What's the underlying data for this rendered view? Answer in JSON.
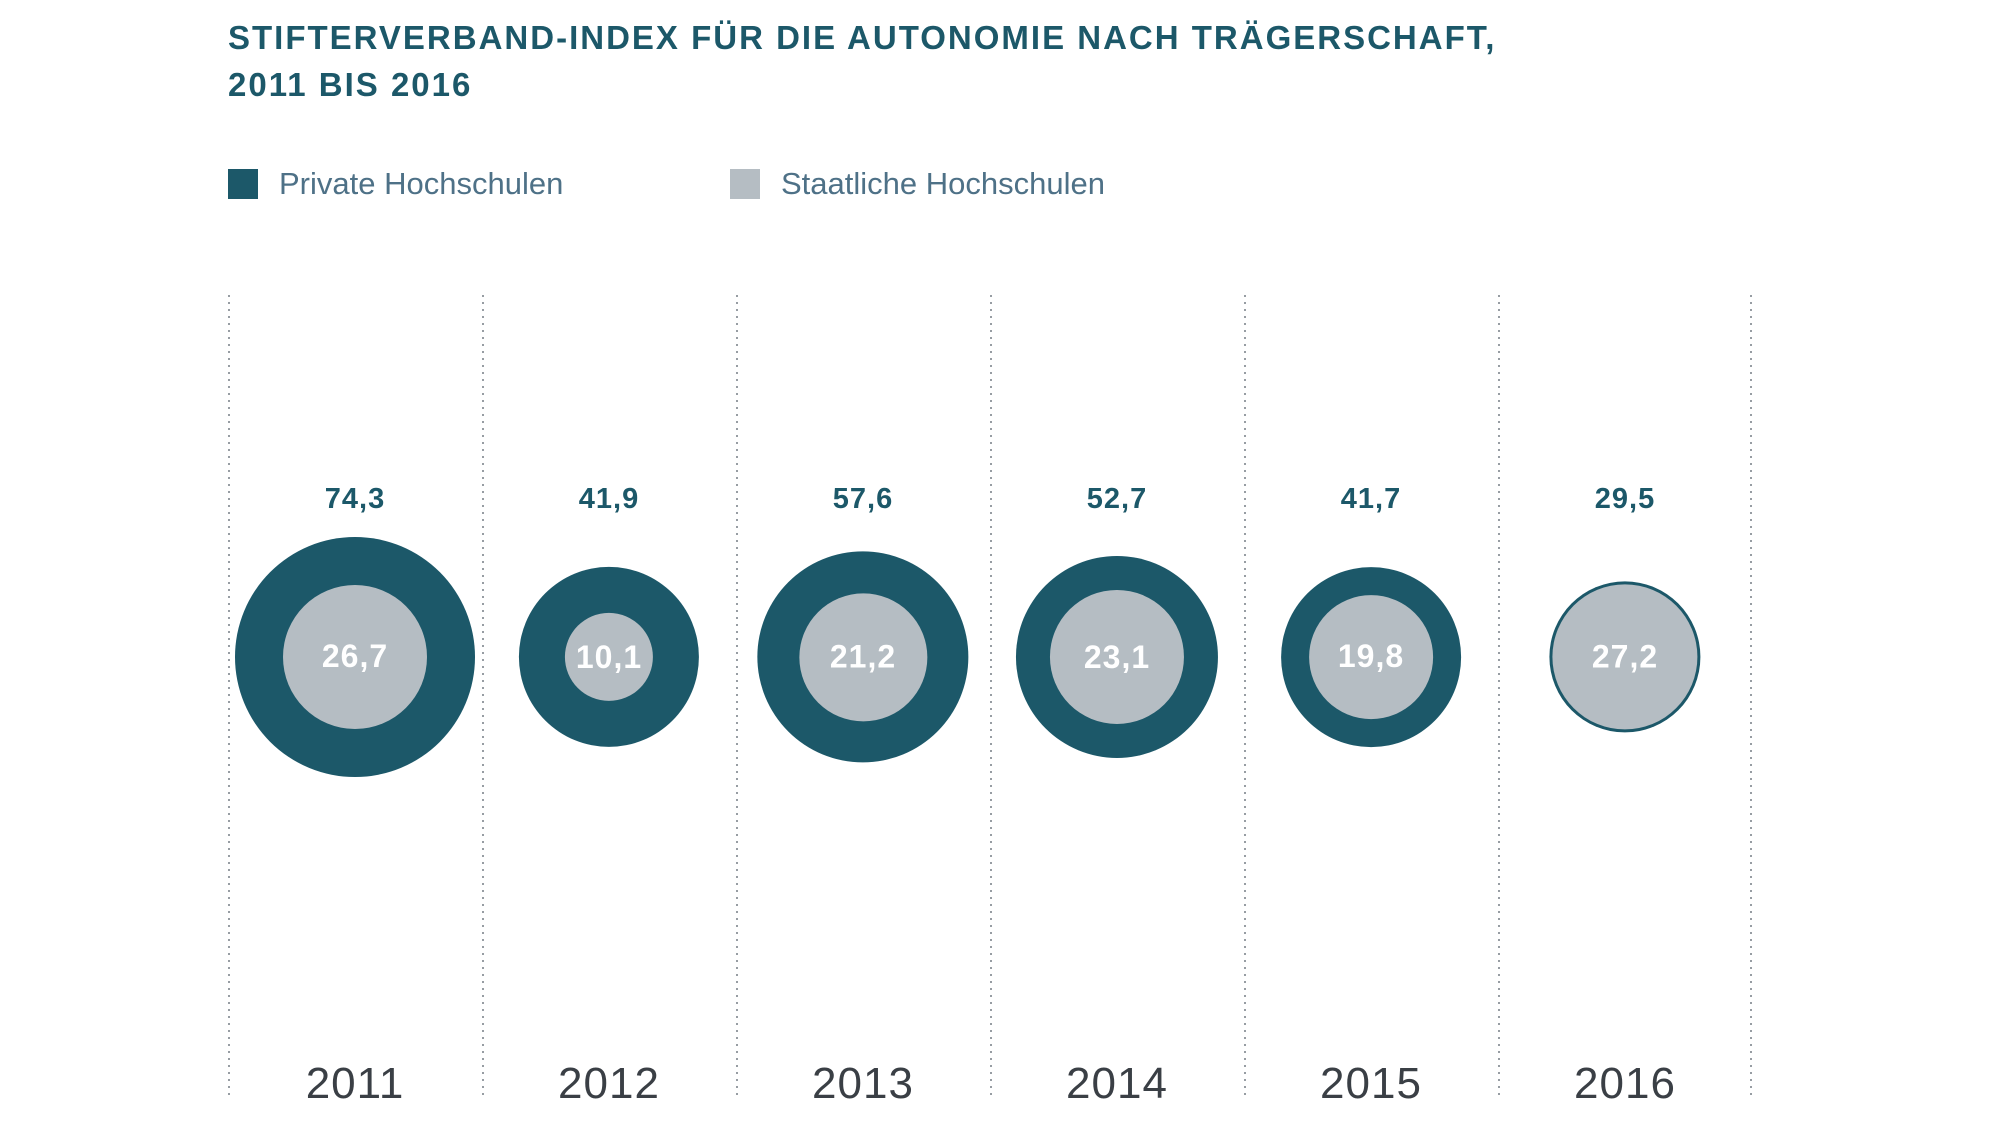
{
  "title": {
    "line1": "STIFTERVERBAND-INDEX FÜR DIE AUTONOMIE NACH TRÄGERSCHAFT,",
    "line2": "2011 BIS 2016"
  },
  "legend": {
    "items": [
      {
        "label": "Private Hochschulen",
        "color": "#1C5869"
      },
      {
        "label": "Staatliche Hochschulen",
        "color": "#B5BDC3"
      }
    ]
  },
  "chart_data": {
    "type": "bubble",
    "title": "Stifterverband-Index für die Autonomie nach Trägerschaft, 2011 bis 2016",
    "categories": [
      "2011",
      "2012",
      "2013",
      "2014",
      "2015",
      "2016"
    ],
    "series": [
      {
        "name": "Private Hochschulen",
        "color": "#1C5869",
        "values": [
          74.3,
          41.9,
          57.6,
          52.7,
          41.7,
          29.5
        ],
        "labels": [
          "74,3",
          "41,9",
          "57,6",
          "52,7",
          "41,7",
          "29,5"
        ]
      },
      {
        "name": "Staatliche Hochschulen",
        "color": "#B5BDC3",
        "values": [
          26.7,
          10.1,
          21.2,
          23.1,
          19.8,
          27.2
        ],
        "labels": [
          "26,7",
          "10,1",
          "21,2",
          "23,1",
          "19,8",
          "27,2"
        ]
      }
    ],
    "encoding": "concentric circles, area proportional to index value; outer = Private, inner = Staatliche",
    "legend_position": "top-left",
    "grid": "dotted vertical separators between year columns",
    "value_label_position": "Private value above circle, Staatliche value inside inner circle"
  },
  "colors": {
    "teal": "#1C5869",
    "gray": "#B5BDC3",
    "legend_text": "#4E7187",
    "year_text": "#3A3F45",
    "dotted_line": "#979DA3",
    "inner_value_text": "#FFFFFF",
    "background": "#FFFFFF"
  }
}
